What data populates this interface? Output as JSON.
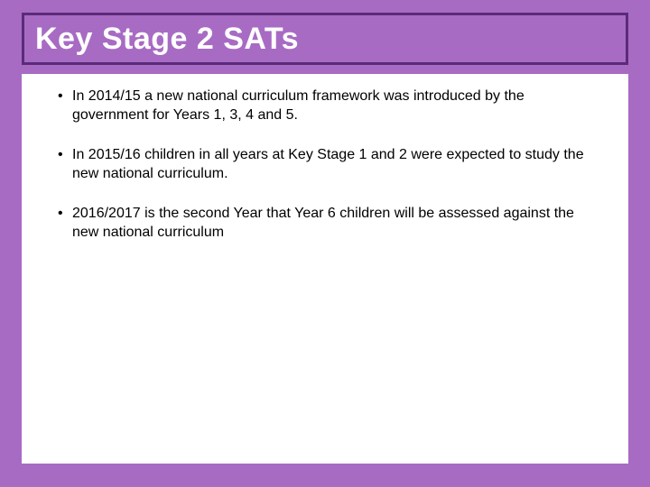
{
  "slide": {
    "title": "Key Stage 2 SATs",
    "background_color": "#a86bc4",
    "title_border_color": "#5a2b7a",
    "title_text_color": "#ffffff",
    "panel_background": "#ffffff",
    "body_text_color": "#000000",
    "title_fontsize": 34,
    "body_fontsize": 16,
    "bullets": [
      "In 2014/15 a new national curriculum framework was introduced by the government for Years 1, 3, 4 and 5.",
      "In 2015/16 children in all years at Key Stage 1 and 2 were expected to study the new national curriculum.",
      "2016/2017 is the second Year that Year 6 children will be assessed against the new national curriculum"
    ]
  }
}
